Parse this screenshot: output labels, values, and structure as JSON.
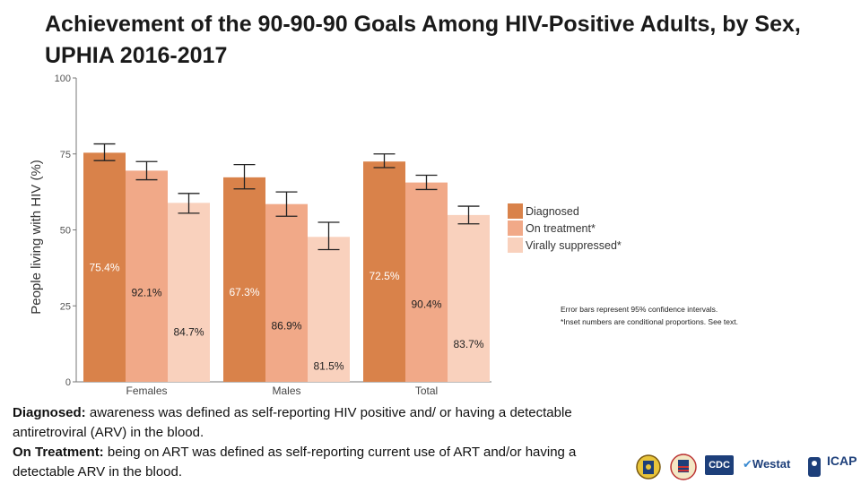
{
  "page": {
    "title": "Achievement of the 90-90-90 Goals Among HIV-Positive Adults, by Sex, UPHIA 2016-2017",
    "footnote_1": "Error bars represent 95% confidence intervals.",
    "footnote_2": "*Inset numbers are conditional proportions. See text.",
    "def_diagnosed_term": "Diagnosed:",
    "def_diagnosed_text": " awareness was defined as self-reporting HIV positive and/ or having a detectable antiretroviral (ARV) in the blood.",
    "def_treatment_term": "On Treatment:",
    "def_treatment_text": " being on ART was defined as self-reporting current use of ART and/or having a detectable ARV in the blood.",
    "logos": {
      "cdc": "CDC",
      "westat": "Westat",
      "icap": "ICAP"
    }
  },
  "chart_data": {
    "type": "bar",
    "title": "Achievement of the 90-90-90 Goals Among HIV-Positive Adults, by Sex, UPHIA 2016-2017",
    "xlabel": "",
    "ylabel": "People living with HIV (%)",
    "ylim": [
      0,
      100
    ],
    "yticks": [
      0,
      25,
      50,
      75,
      100
    ],
    "categories": [
      "Females",
      "Males",
      "Total"
    ],
    "legend_position": "right",
    "series": [
      {
        "name": "Diagnosed",
        "color": "#d9824a",
        "values": [
          75.4,
          67.3,
          72.5
        ],
        "err_low": [
          72.8,
          63.5,
          70.5
        ],
        "err_high": [
          78.3,
          71.5,
          75.0
        ],
        "labels": [
          "75.4%",
          "67.3%",
          "72.5%"
        ]
      },
      {
        "name": "On treatment*",
        "color": "#f1a988",
        "values": [
          69.5,
          58.5,
          65.6
        ],
        "err_low": [
          66.5,
          54.5,
          63.3
        ],
        "err_high": [
          72.5,
          62.5,
          68.0
        ],
        "labels": [
          "92.1%",
          "86.9%",
          "90.4%"
        ]
      },
      {
        "name": "Virally suppressed*",
        "color": "#f9d1bd",
        "values": [
          58.9,
          47.7,
          54.9
        ],
        "err_low": [
          55.5,
          43.5,
          52.0
        ],
        "err_high": [
          62.0,
          52.5,
          57.8
        ],
        "labels": [
          "84.7%",
          "81.5%",
          "83.7%"
        ]
      }
    ]
  }
}
